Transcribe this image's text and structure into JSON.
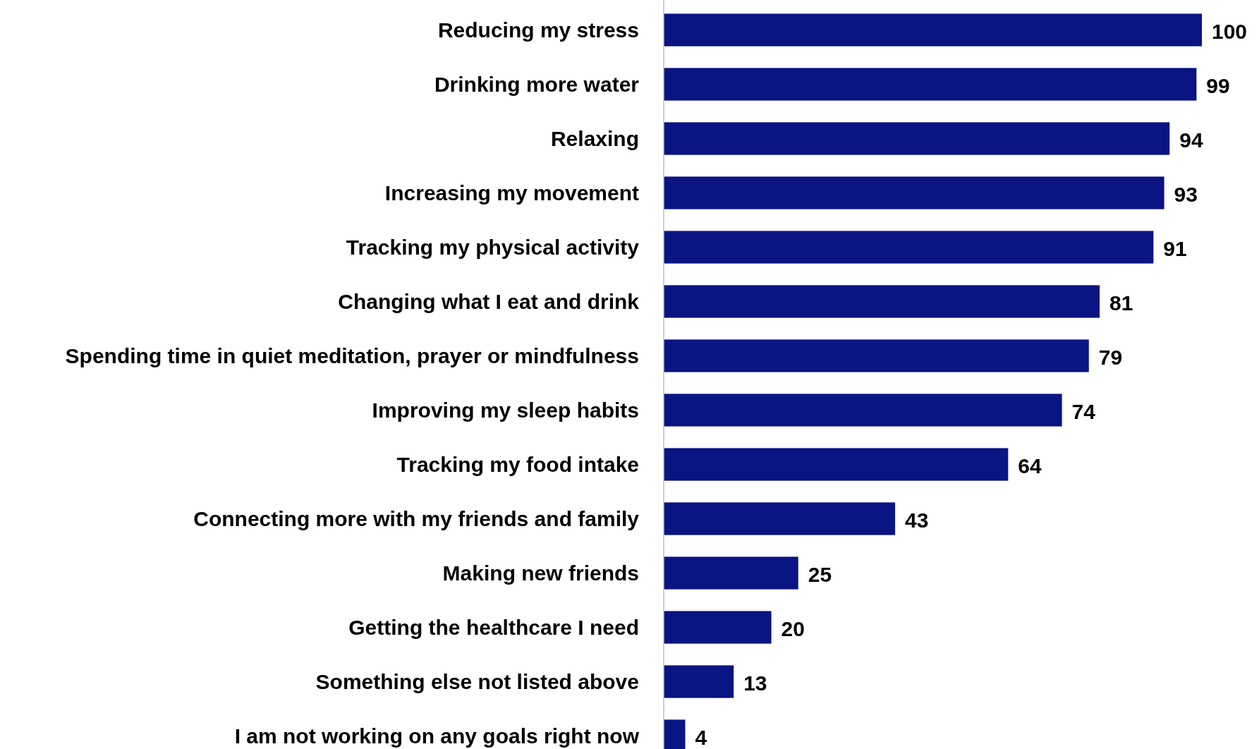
{
  "chart_data": {
    "type": "bar",
    "orientation": "horizontal",
    "categories": [
      "Reducing my stress",
      "Drinking more water",
      "Relaxing",
      "Increasing my movement",
      "Tracking my physical activity",
      "Changing what I eat and drink",
      "Spending time in quiet meditation, prayer or mindfulness",
      "Improving my sleep habits",
      "Tracking my food intake",
      "Connecting more with my friends and family",
      "Making new friends",
      "Getting the healthcare I need",
      "Something else not listed above",
      "I am not working on any goals right now"
    ],
    "values": [
      100,
      99,
      94,
      93,
      91,
      81,
      79,
      74,
      64,
      43,
      25,
      20,
      13,
      4
    ],
    "color": "#0a1482",
    "data_labels": true
  }
}
